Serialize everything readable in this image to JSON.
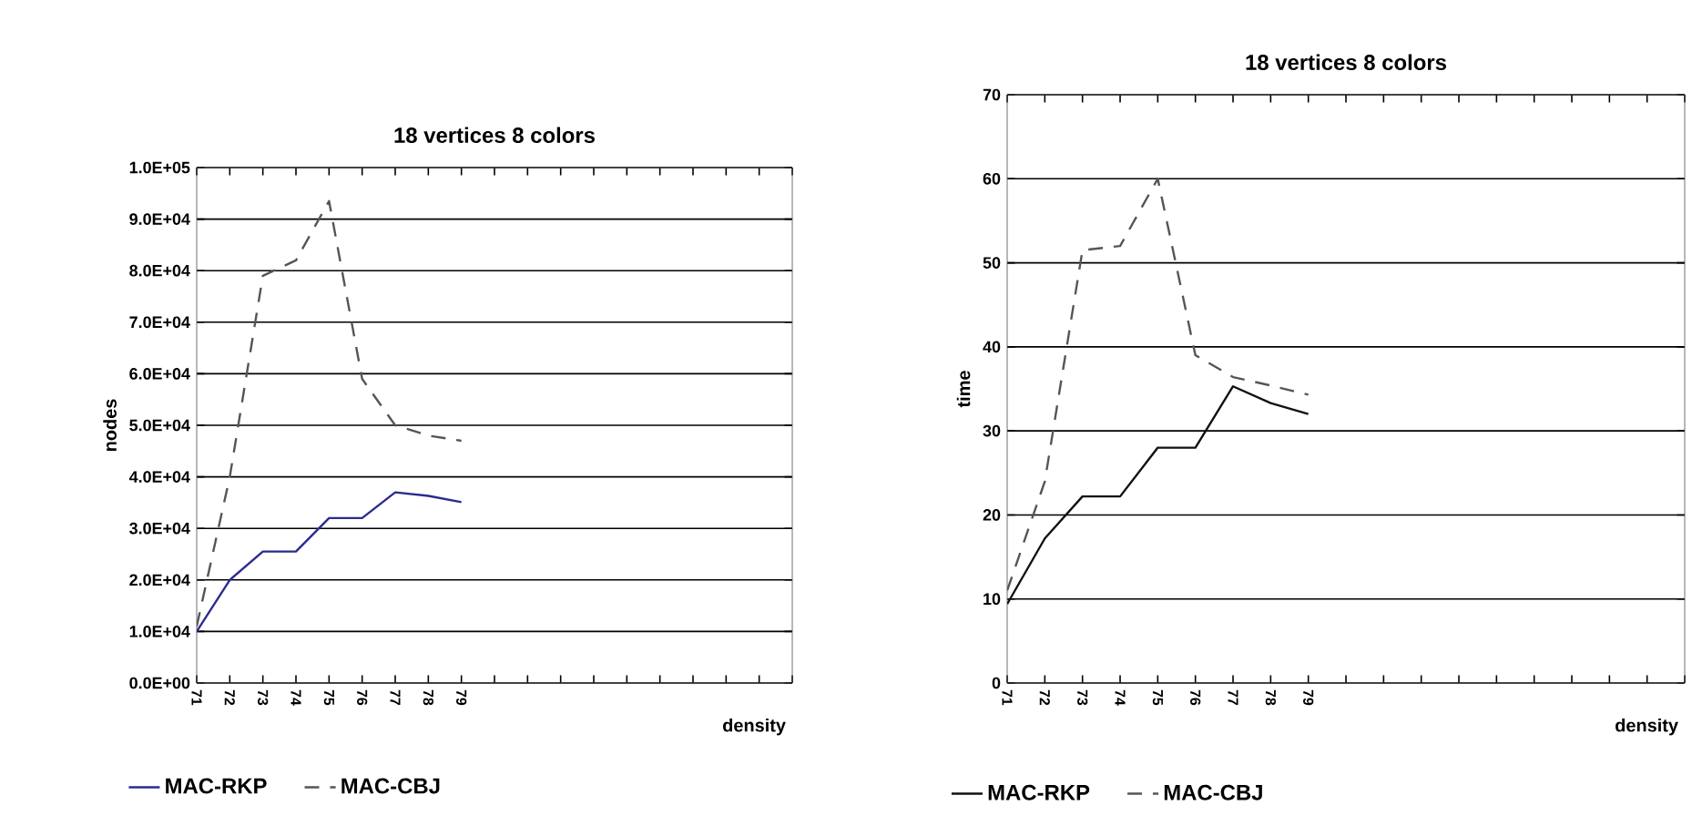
{
  "chart_data": [
    {
      "type": "line",
      "title": "18 vertices   8 colors",
      "xlabel": "density",
      "ylabel": "nodes",
      "categories": [
        "71",
        "72",
        "73",
        "74",
        "75",
        "76",
        "77",
        "78",
        "79",
        null,
        null,
        null,
        null,
        null,
        null,
        null,
        null,
        null,
        null
      ],
      "series": [
        {
          "name": "MAC-RKP",
          "color": "#2b2b8f",
          "line_style": "solid",
          "values": [
            10000,
            20000,
            25500,
            25500,
            32000,
            32000,
            37000,
            36300,
            35100,
            null,
            null,
            null,
            null,
            null,
            null,
            null,
            null,
            null,
            null
          ]
        },
        {
          "name": "MAC-CBJ",
          "color": "#555555",
          "line_style": "dashed",
          "values": [
            11000,
            40000,
            79000,
            82000,
            93500,
            59000,
            50000,
            48000,
            47000,
            null,
            null,
            null,
            null,
            null,
            null,
            null,
            null,
            null,
            null
          ]
        }
      ],
      "ylim": [
        0,
        100000
      ],
      "yticks": [
        {
          "value": 0,
          "label": "0.0E+00"
        },
        {
          "value": 10000,
          "label": "1.0E+04"
        },
        {
          "value": 20000,
          "label": "2.0E+04"
        },
        {
          "value": 30000,
          "label": "3.0E+04"
        },
        {
          "value": 40000,
          "label": "4.0E+04"
        },
        {
          "value": 50000,
          "label": "5.0E+04"
        },
        {
          "value": 60000,
          "label": "6.0E+04"
        },
        {
          "value": 70000,
          "label": "7.0E+04"
        },
        {
          "value": 80000,
          "label": "8.0E+04"
        },
        {
          "value": 90000,
          "label": "9.0E+04"
        },
        {
          "value": 100000,
          "label": "1.0E+05"
        }
      ],
      "grid": "y",
      "legend": "bottom"
    },
    {
      "type": "line",
      "title": "18 vertices    8 colors",
      "xlabel": "density",
      "ylabel": "time",
      "categories": [
        "71",
        "72",
        "73",
        "74",
        "75",
        "76",
        "77",
        "78",
        "79",
        null,
        null,
        null,
        null,
        null,
        null,
        null,
        null,
        null,
        null
      ],
      "series": [
        {
          "name": "MAC-RKP",
          "color": "#111111",
          "line_style": "solid",
          "values": [
            9.4,
            17.2,
            22.2,
            22.2,
            28,
            28,
            35.3,
            33.3,
            32,
            null,
            null,
            null,
            null,
            null,
            null,
            null,
            null,
            null,
            null
          ]
        },
        {
          "name": "MAC-CBJ",
          "color": "#555555",
          "line_style": "dashed",
          "values": [
            11,
            24,
            51.5,
            52,
            60,
            39,
            36.4,
            35.4,
            34.3,
            null,
            null,
            null,
            null,
            null,
            null,
            null,
            null,
            null,
            null
          ]
        }
      ],
      "ylim": [
        0,
        70
      ],
      "yticks": [
        0,
        10,
        20,
        30,
        40,
        50,
        60,
        70
      ],
      "grid": "y",
      "legend": "bottom"
    }
  ]
}
